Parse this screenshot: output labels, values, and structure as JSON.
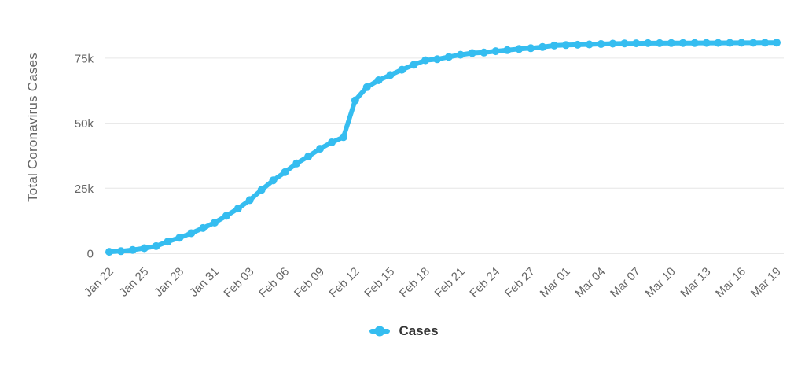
{
  "chart_data": {
    "type": "line",
    "ylabel": "Total Coronavirus Cases",
    "x": [
      "Jan 22",
      "Jan 23",
      "Jan 24",
      "Jan 25",
      "Jan 26",
      "Jan 27",
      "Jan 28",
      "Jan 29",
      "Jan 30",
      "Jan 31",
      "Feb 01",
      "Feb 02",
      "Feb 03",
      "Feb 04",
      "Feb 05",
      "Feb 06",
      "Feb 07",
      "Feb 08",
      "Feb 09",
      "Feb 10",
      "Feb 11",
      "Feb 12",
      "Feb 13",
      "Feb 14",
      "Feb 15",
      "Feb 16",
      "Feb 17",
      "Feb 18",
      "Feb 19",
      "Feb 20",
      "Feb 21",
      "Feb 22",
      "Feb 23",
      "Feb 24",
      "Feb 25",
      "Feb 26",
      "Feb 27",
      "Feb 28",
      "Feb 29",
      "Mar 01",
      "Mar 02",
      "Mar 03",
      "Mar 04",
      "Mar 05",
      "Mar 06",
      "Mar 07",
      "Mar 08",
      "Mar 09",
      "Mar 10",
      "Mar 11",
      "Mar 12",
      "Mar 13",
      "Mar 14",
      "Mar 15",
      "Mar 16",
      "Mar 17",
      "Mar 18",
      "Mar 19"
    ],
    "series": [
      {
        "name": "Cases",
        "color": "#35bdf0",
        "values": [
          571,
          830,
          1287,
          1975,
          2744,
          4515,
          5974,
          7711,
          9692,
          11791,
          14380,
          17205,
          20438,
          24324,
          28018,
          31161,
          34546,
          37198,
          40171,
          42638,
          44653,
          58761,
          63851,
          66492,
          68500,
          70548,
          72436,
          74185,
          74576,
          75465,
          76288,
          76936,
          77150,
          77658,
          78064,
          78497,
          78824,
          79251,
          79824,
          80026,
          80151,
          80270,
          80409,
          80552,
          80651,
          80695,
          80735,
          80754,
          80778,
          80793,
          80813,
          80824,
          80844,
          80860,
          80881,
          80894,
          80928,
          80967
        ]
      }
    ],
    "xtick_step": 3,
    "xtick_labels_shown": [
      "Jan 22",
      "Jan 25",
      "Jan 28",
      "Jan 31",
      "Feb 03",
      "Feb 06",
      "Feb 09",
      "Feb 12",
      "Feb 15",
      "Feb 18",
      "Feb 21",
      "Feb 24",
      "Feb 27",
      "Mar 01",
      "Mar 04",
      "Mar 07",
      "Mar 10",
      "Mar 13",
      "Mar 16",
      "Mar 19"
    ],
    "yticks": [
      0,
      25000,
      50000,
      75000
    ],
    "ytick_labels": [
      "0",
      "25k",
      "50k",
      "75k"
    ],
    "ylim": [
      0,
      87500
    ],
    "grid": true,
    "legend_position": "bottom-center",
    "marker": "circle",
    "colors": {
      "grid": "#e6e6e6",
      "axis_line": "#d0d0d0",
      "tick_text": "#666666",
      "axis_title_text": "#666666",
      "legend_text": "#333333"
    }
  }
}
